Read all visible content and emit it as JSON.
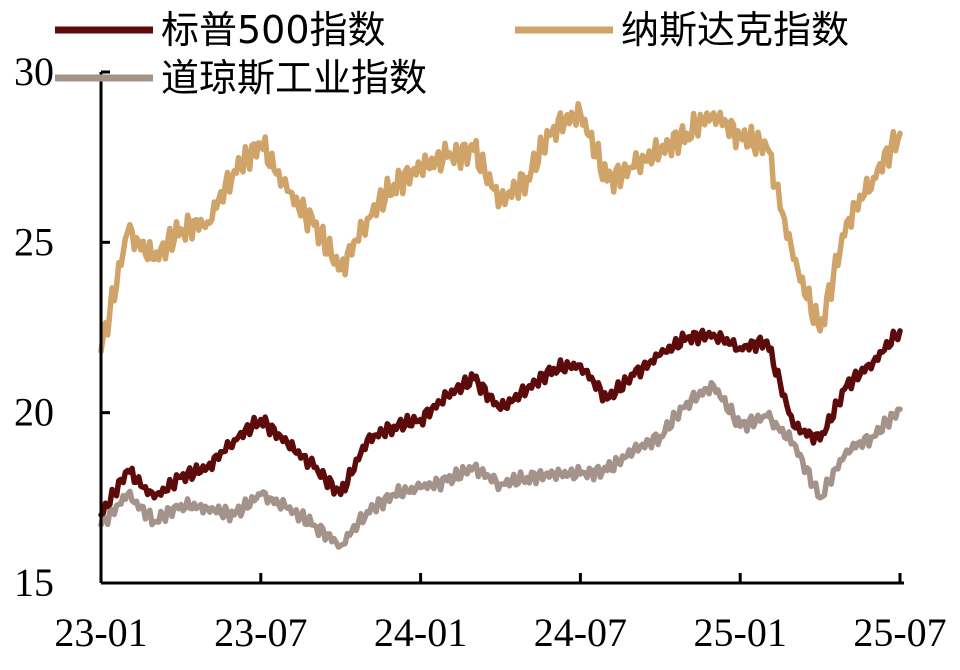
{
  "chart_data": {
    "type": "line",
    "title": "",
    "xlabel": "",
    "ylabel": "",
    "ylim": [
      15,
      30
    ],
    "yticks": [
      "15",
      "20",
      "25",
      "30"
    ],
    "xticks": [
      "23-01",
      "23-07",
      "24-01",
      "24-07",
      "25-01",
      "25-07"
    ],
    "grid": false,
    "legend_position": "top",
    "x": [
      "23-01",
      "23-02",
      "23-03",
      "23-04",
      "23-05",
      "23-06",
      "23-07",
      "23-08",
      "23-09",
      "23-10",
      "23-11",
      "23-12",
      "24-01",
      "24-02",
      "24-03",
      "24-04",
      "24-05",
      "24-06",
      "24-07",
      "24-08",
      "24-09",
      "24-10",
      "24-11",
      "24-12",
      "25-01",
      "25-02",
      "25-03",
      "25-04",
      "25-05",
      "25-06",
      "25-07"
    ],
    "series": [
      {
        "name": "标普500指数",
        "color": "#5c0a0a",
        "values": [
          17.0,
          18.3,
          17.5,
          18.1,
          18.4,
          19.2,
          19.8,
          19.1,
          18.4,
          17.6,
          19.2,
          19.6,
          19.8,
          20.5,
          21.0,
          20.1,
          20.7,
          21.3,
          21.4,
          20.4,
          21.1,
          21.7,
          22.2,
          22.3,
          21.9,
          22.1,
          19.6,
          19.2,
          20.8,
          21.5,
          22.4
        ]
      },
      {
        "name": "纳斯达克指数",
        "color": "#d0a468",
        "values": [
          21.8,
          25.3,
          24.5,
          25.4,
          25.6,
          27.1,
          27.9,
          26.5,
          25.5,
          24.2,
          25.7,
          26.7,
          27.2,
          27.5,
          27.7,
          26.2,
          26.9,
          28.4,
          28.8,
          26.8,
          27.2,
          27.7,
          28.2,
          28.8,
          28.1,
          27.8,
          24.5,
          22.4,
          25.6,
          26.9,
          28.2
        ]
      },
      {
        "name": "道琼斯工业指数",
        "color": "#a3938a",
        "values": [
          16.7,
          17.6,
          16.8,
          17.3,
          17.2,
          17.0,
          17.6,
          17.2,
          16.7,
          16.1,
          17.1,
          17.6,
          17.8,
          18.0,
          18.4,
          17.9,
          18.1,
          18.2,
          18.2,
          18.3,
          18.9,
          19.3,
          20.3,
          20.8,
          19.6,
          19.9,
          19.1,
          17.5,
          18.9,
          19.3,
          20.1
        ]
      }
    ]
  }
}
